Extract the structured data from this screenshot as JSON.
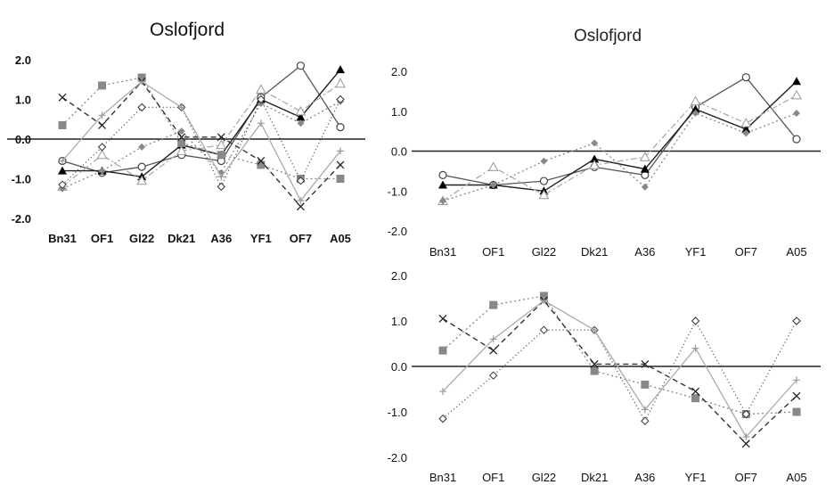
{
  "chart_data": [
    {
      "type": "line",
      "title": "Oslofjord",
      "categories": [
        "Bn31",
        "OF1",
        "Gl22",
        "Dk21",
        "A36",
        "YF1",
        "OF7",
        "A05"
      ],
      "ylim": [
        -2.0,
        2.0
      ],
      "yticks": [
        "2.0",
        "1.0",
        "0.0",
        "-1.0",
        "-2.0"
      ],
      "grid": false,
      "series": [
        {
          "marker": "circle-open",
          "values": [
            -0.55,
            -0.85,
            -0.7,
            -0.4,
            -0.55,
            1.05,
            1.85,
            0.3
          ]
        },
        {
          "marker": "triangle-filled",
          "values": [
            -0.8,
            -0.8,
            -0.95,
            -0.15,
            -0.4,
            1.0,
            0.55,
            1.75
          ]
        },
        {
          "marker": "triangle-open",
          "values": [
            -1.2,
            -0.4,
            -1.05,
            -0.3,
            -0.15,
            1.25,
            0.7,
            1.4
          ]
        },
        {
          "marker": "diamond-filled",
          "values": [
            -1.25,
            -0.8,
            -0.2,
            0.2,
            -0.85,
            0.9,
            0.4,
            0.95
          ]
        },
        {
          "marker": "square-filled",
          "values": [
            0.35,
            1.35,
            1.55,
            -0.1,
            -0.4,
            -0.65,
            -1.0,
            -1.0
          ]
        },
        {
          "marker": "x",
          "values": [
            1.05,
            0.35,
            1.45,
            0.05,
            0.05,
            -0.55,
            -1.7,
            -0.65
          ]
        },
        {
          "marker": "diamond-open",
          "values": [
            -1.15,
            -0.2,
            0.8,
            0.8,
            -1.2,
            1.0,
            -1.05,
            1.0
          ]
        },
        {
          "marker": "plus",
          "values": [
            -0.55,
            0.6,
            1.45,
            0.8,
            -0.95,
            0.4,
            -1.55,
            -0.3
          ]
        }
      ]
    },
    {
      "type": "line",
      "title": "Oslofjord",
      "categories": [
        "Bn31",
        "OF1",
        "Gl22",
        "Dk21",
        "A36",
        "YF1",
        "OF7",
        "A05"
      ],
      "ylim": [
        -2.0,
        2.0
      ],
      "yticks": [
        "2.0",
        "1.0",
        "0.0",
        "-1.0",
        "-2.0"
      ],
      "grid": false,
      "series": [
        {
          "marker": "circle-open",
          "values": [
            -0.6,
            -0.85,
            -0.75,
            -0.4,
            -0.6,
            1.1,
            1.85,
            0.3
          ]
        },
        {
          "marker": "triangle-filled",
          "values": [
            -0.85,
            -0.85,
            -1.0,
            -0.2,
            -0.45,
            1.05,
            0.55,
            1.75
          ]
        },
        {
          "marker": "triangle-open",
          "values": [
            -1.25,
            -0.4,
            -1.1,
            -0.35,
            -0.15,
            1.25,
            0.7,
            1.4
          ]
        },
        {
          "marker": "diamond-filled",
          "values": [
            -1.25,
            -0.85,
            -0.25,
            0.2,
            -0.9,
            0.95,
            0.45,
            0.95
          ]
        }
      ]
    },
    {
      "type": "line",
      "title": "",
      "categories": [
        "Bn31",
        "OF1",
        "Gl22",
        "Dk21",
        "A36",
        "YF1",
        "OF7",
        "A05"
      ],
      "ylim": [
        -2.0,
        2.0
      ],
      "yticks": [
        "2.0",
        "1.0",
        "0.0",
        "-1.0",
        "-2.0"
      ],
      "grid": false,
      "series": [
        {
          "marker": "square-filled",
          "values": [
            0.35,
            1.35,
            1.55,
            -0.1,
            -0.4,
            -0.7,
            -1.05,
            -1.0
          ]
        },
        {
          "marker": "x",
          "values": [
            1.05,
            0.35,
            1.45,
            0.05,
            0.05,
            -0.55,
            -1.7,
            -0.65
          ]
        },
        {
          "marker": "diamond-open",
          "values": [
            -1.15,
            -0.2,
            0.8,
            0.8,
            -1.2,
            1.0,
            -1.05,
            1.0
          ]
        },
        {
          "marker": "plus",
          "values": [
            -0.55,
            0.6,
            1.45,
            0.8,
            -0.95,
            0.4,
            -1.55,
            -0.3
          ]
        }
      ]
    }
  ]
}
